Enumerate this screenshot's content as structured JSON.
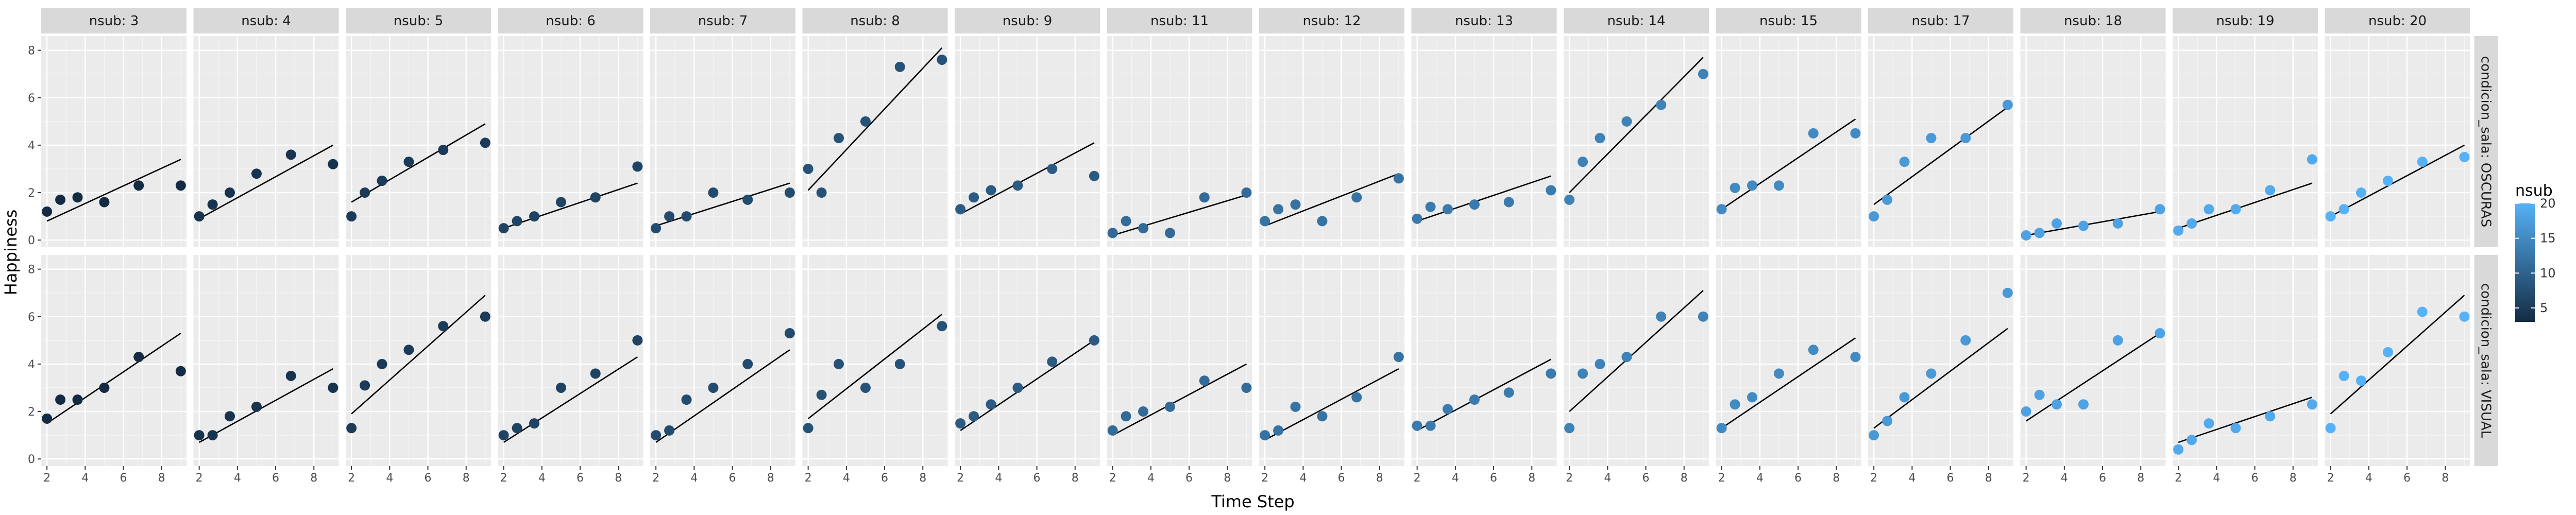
{
  "chart_data": {
    "type": "scatter",
    "title": "",
    "xlabel": "Time Step",
    "ylabel": "Happiness",
    "xlim": [
      1.7,
      9.3
    ],
    "ylim": [
      -0.3,
      8.6
    ],
    "xticks": [
      2,
      4,
      6,
      8
    ],
    "yticks": [
      0,
      2,
      4,
      6,
      8
    ],
    "grid": true,
    "legend": {
      "title": "nsub",
      "position": "right",
      "labels": [
        20,
        15,
        10,
        5
      ],
      "color_low": "#132B43",
      "color_high": "#56B1F7",
      "range": [
        3,
        20
      ]
    },
    "column_strip_prefix": "nsub: ",
    "row_strip_prefix": "condicion_sala: ",
    "rows": [
      "OSCURAS",
      "VISUAL"
    ],
    "panels": [
      {
        "nsub": 3,
        "OSCURAS": {
          "x": [
            2,
            2.7,
            3.6,
            5,
            6.8,
            9
          ],
          "y": [
            1.2,
            1.7,
            1.8,
            1.6,
            2.3,
            2.3
          ],
          "fit": [
            0.8,
            3.4
          ]
        },
        "VISUAL": {
          "x": [
            2,
            2.7,
            3.6,
            5,
            6.8,
            9
          ],
          "y": [
            1.7,
            2.5,
            2.5,
            3,
            4.3,
            3.7
          ],
          "fit": [
            1.5,
            5.3
          ]
        }
      },
      {
        "nsub": 4,
        "OSCURAS": {
          "x": [
            2,
            2.7,
            3.6,
            5,
            6.8,
            9
          ],
          "y": [
            1,
            1.5,
            2,
            2.8,
            3.6,
            3.2
          ],
          "fit": [
            0.9,
            4
          ]
        },
        "VISUAL": {
          "x": [
            2,
            2.7,
            3.6,
            5,
            6.8,
            9
          ],
          "y": [
            1,
            1,
            1.8,
            2.2,
            3.5,
            3
          ],
          "fit": [
            0.7,
            3.8
          ]
        }
      },
      {
        "nsub": 5,
        "OSCURAS": {
          "x": [
            2,
            2.7,
            3.6,
            5,
            6.8,
            9
          ],
          "y": [
            1,
            2,
            2.5,
            3.3,
            3.8,
            4.1
          ],
          "fit": [
            1.6,
            4.9
          ]
        },
        "VISUAL": {
          "x": [
            2,
            2.7,
            3.6,
            5,
            6.8,
            9
          ],
          "y": [
            1.3,
            3.1,
            4,
            4.6,
            5.6,
            6
          ],
          "fit": [
            1.9,
            6.9
          ]
        }
      },
      {
        "nsub": 6,
        "OSCURAS": {
          "x": [
            2,
            2.7,
            3.6,
            5,
            6.8,
            9
          ],
          "y": [
            0.5,
            0.8,
            1,
            1.6,
            1.8,
            3.1
          ],
          "fit": [
            0.5,
            2.4
          ]
        },
        "VISUAL": {
          "x": [
            2,
            2.7,
            3.6,
            5,
            6.8,
            9
          ],
          "y": [
            1,
            1.3,
            1.5,
            3,
            3.6,
            5
          ],
          "fit": [
            0.7,
            4.3
          ]
        }
      },
      {
        "nsub": 7,
        "OSCURAS": {
          "x": [
            2,
            2.7,
            3.6,
            5,
            6.8,
            9
          ],
          "y": [
            0.5,
            1,
            1,
            2,
            1.7,
            2
          ],
          "fit": [
            0.6,
            2.4
          ]
        },
        "VISUAL": {
          "x": [
            2,
            2.7,
            3.6,
            5,
            6.8,
            9
          ],
          "y": [
            1,
            1.2,
            2.5,
            3,
            4,
            5.3
          ],
          "fit": [
            0.7,
            4.6
          ]
        }
      },
      {
        "nsub": 8,
        "OSCURAS": {
          "x": [
            2,
            2.7,
            3.6,
            5,
            6.8,
            9
          ],
          "y": [
            3,
            2,
            4.3,
            5,
            7.3,
            7.6
          ],
          "fit": [
            2.1,
            8.1
          ]
        },
        "VISUAL": {
          "x": [
            2,
            2.7,
            3.6,
            5,
            6.8,
            9
          ],
          "y": [
            1.3,
            2.7,
            4,
            3,
            4,
            5.6
          ],
          "fit": [
            1.7,
            6.1
          ]
        }
      },
      {
        "nsub": 9,
        "OSCURAS": {
          "x": [
            2,
            2.7,
            3.6,
            5,
            6.8,
            9
          ],
          "y": [
            1.3,
            1.8,
            2.1,
            2.3,
            3,
            2.7
          ],
          "fit": [
            1.1,
            4.1
          ]
        },
        "VISUAL": {
          "x": [
            2,
            2.7,
            3.6,
            5,
            6.8,
            9
          ],
          "y": [
            1.5,
            1.8,
            2.3,
            3,
            4.1,
            5
          ],
          "fit": [
            1.2,
            5
          ]
        }
      },
      {
        "nsub": 11,
        "OSCURAS": {
          "x": [
            2,
            2.7,
            3.6,
            5,
            6.8,
            9
          ],
          "y": [
            0.3,
            0.8,
            0.5,
            0.3,
            1.8,
            2
          ],
          "fit": [
            0.2,
            1.9
          ]
        },
        "VISUAL": {
          "x": [
            2,
            2.7,
            3.6,
            5,
            6.8,
            9
          ],
          "y": [
            1.2,
            1.8,
            2,
            2.2,
            3.3,
            3
          ],
          "fit": [
            1,
            4
          ]
        }
      },
      {
        "nsub": 12,
        "OSCURAS": {
          "x": [
            2,
            2.7,
            3.6,
            5,
            6.8,
            9
          ],
          "y": [
            0.8,
            1.3,
            1.5,
            0.8,
            1.8,
            2.6
          ],
          "fit": [
            0.6,
            2.8
          ]
        },
        "VISUAL": {
          "x": [
            2,
            2.7,
            3.6,
            5,
            6.8,
            9
          ],
          "y": [
            1,
            1.2,
            2.2,
            1.8,
            2.6,
            4.3
          ],
          "fit": [
            0.8,
            3.8
          ]
        }
      },
      {
        "nsub": 13,
        "OSCURAS": {
          "x": [
            2,
            2.7,
            3.6,
            5,
            6.8,
            9
          ],
          "y": [
            0.9,
            1.4,
            1.3,
            1.5,
            1.6,
            2.1
          ],
          "fit": [
            0.8,
            2.7
          ]
        },
        "VISUAL": {
          "x": [
            2,
            2.7,
            3.6,
            5,
            6.8,
            9
          ],
          "y": [
            1.4,
            1.4,
            2.1,
            2.5,
            2.8,
            3.6
          ],
          "fit": [
            1.2,
            4.2
          ]
        }
      },
      {
        "nsub": 14,
        "OSCURAS": {
          "x": [
            2,
            2.7,
            3.6,
            5,
            6.8,
            9
          ],
          "y": [
            1.7,
            3.3,
            4.3,
            5,
            5.7,
            7
          ],
          "fit": [
            2,
            7.7
          ]
        },
        "VISUAL": {
          "x": [
            2,
            2.7,
            3.6,
            5,
            6.8,
            9
          ],
          "y": [
            1.3,
            3.6,
            4,
            4.3,
            6,
            6
          ],
          "fit": [
            2,
            7.1
          ]
        }
      },
      {
        "nsub": 15,
        "OSCURAS": {
          "x": [
            2,
            2.7,
            3.6,
            5,
            6.8,
            9
          ],
          "y": [
            1.3,
            2.2,
            2.3,
            2.3,
            4.5,
            4.5
          ],
          "fit": [
            1.3,
            5.1
          ]
        },
        "VISUAL": {
          "x": [
            2,
            2.7,
            3.6,
            5,
            6.8,
            9
          ],
          "y": [
            1.3,
            2.3,
            2.6,
            3.6,
            4.6,
            4.3
          ],
          "fit": [
            1.3,
            5.1
          ]
        }
      },
      {
        "nsub": 17,
        "OSCURAS": {
          "x": [
            2,
            2.7,
            3.6,
            5,
            6.8,
            9
          ],
          "y": [
            1,
            1.7,
            3.3,
            4.3,
            4.3,
            5.7
          ],
          "fit": [
            1.5,
            5.6
          ]
        },
        "VISUAL": {
          "x": [
            2,
            2.7,
            3.6,
            5,
            6.8,
            9
          ],
          "y": [
            1,
            1.6,
            2.6,
            3.6,
            5,
            7
          ],
          "fit": [
            1.3,
            5.5
          ]
        }
      },
      {
        "nsub": 18,
        "OSCURAS": {
          "x": [
            2,
            2.7,
            3.6,
            5,
            6.8,
            9
          ],
          "y": [
            0.2,
            0.3,
            0.7,
            0.6,
            0.7,
            1.3
          ],
          "fit": [
            0.2,
            1.2
          ]
        },
        "VISUAL": {
          "x": [
            2,
            2.7,
            3.6,
            5,
            6.8,
            9
          ],
          "y": [
            2,
            2.7,
            2.3,
            2.3,
            5,
            5.3
          ],
          "fit": [
            1.6,
            5.3
          ]
        }
      },
      {
        "nsub": 19,
        "OSCURAS": {
          "x": [
            2,
            2.7,
            3.6,
            5,
            6.8,
            9
          ],
          "y": [
            0.4,
            0.7,
            1.3,
            1.3,
            2.1,
            3.4
          ],
          "fit": [
            0.5,
            2.4
          ]
        },
        "VISUAL": {
          "x": [
            2,
            2.7,
            3.6,
            5,
            6.8,
            9
          ],
          "y": [
            0.4,
            0.8,
            1.5,
            1.3,
            1.8,
            2.3
          ],
          "fit": [
            0.7,
            2.6
          ]
        }
      },
      {
        "nsub": 20,
        "OSCURAS": {
          "x": [
            2,
            2.7,
            3.6,
            5,
            6.8,
            9
          ],
          "y": [
            1,
            1.3,
            2,
            2.5,
            3.3,
            3.5
          ],
          "fit": [
            1,
            4
          ]
        },
        "VISUAL": {
          "x": [
            2,
            2.7,
            3.6,
            5,
            6.8,
            9
          ],
          "y": [
            1.3,
            3.5,
            3.3,
            4.5,
            6.2,
            6
          ],
          "fit": [
            1.9,
            6.9
          ]
        }
      }
    ]
  }
}
